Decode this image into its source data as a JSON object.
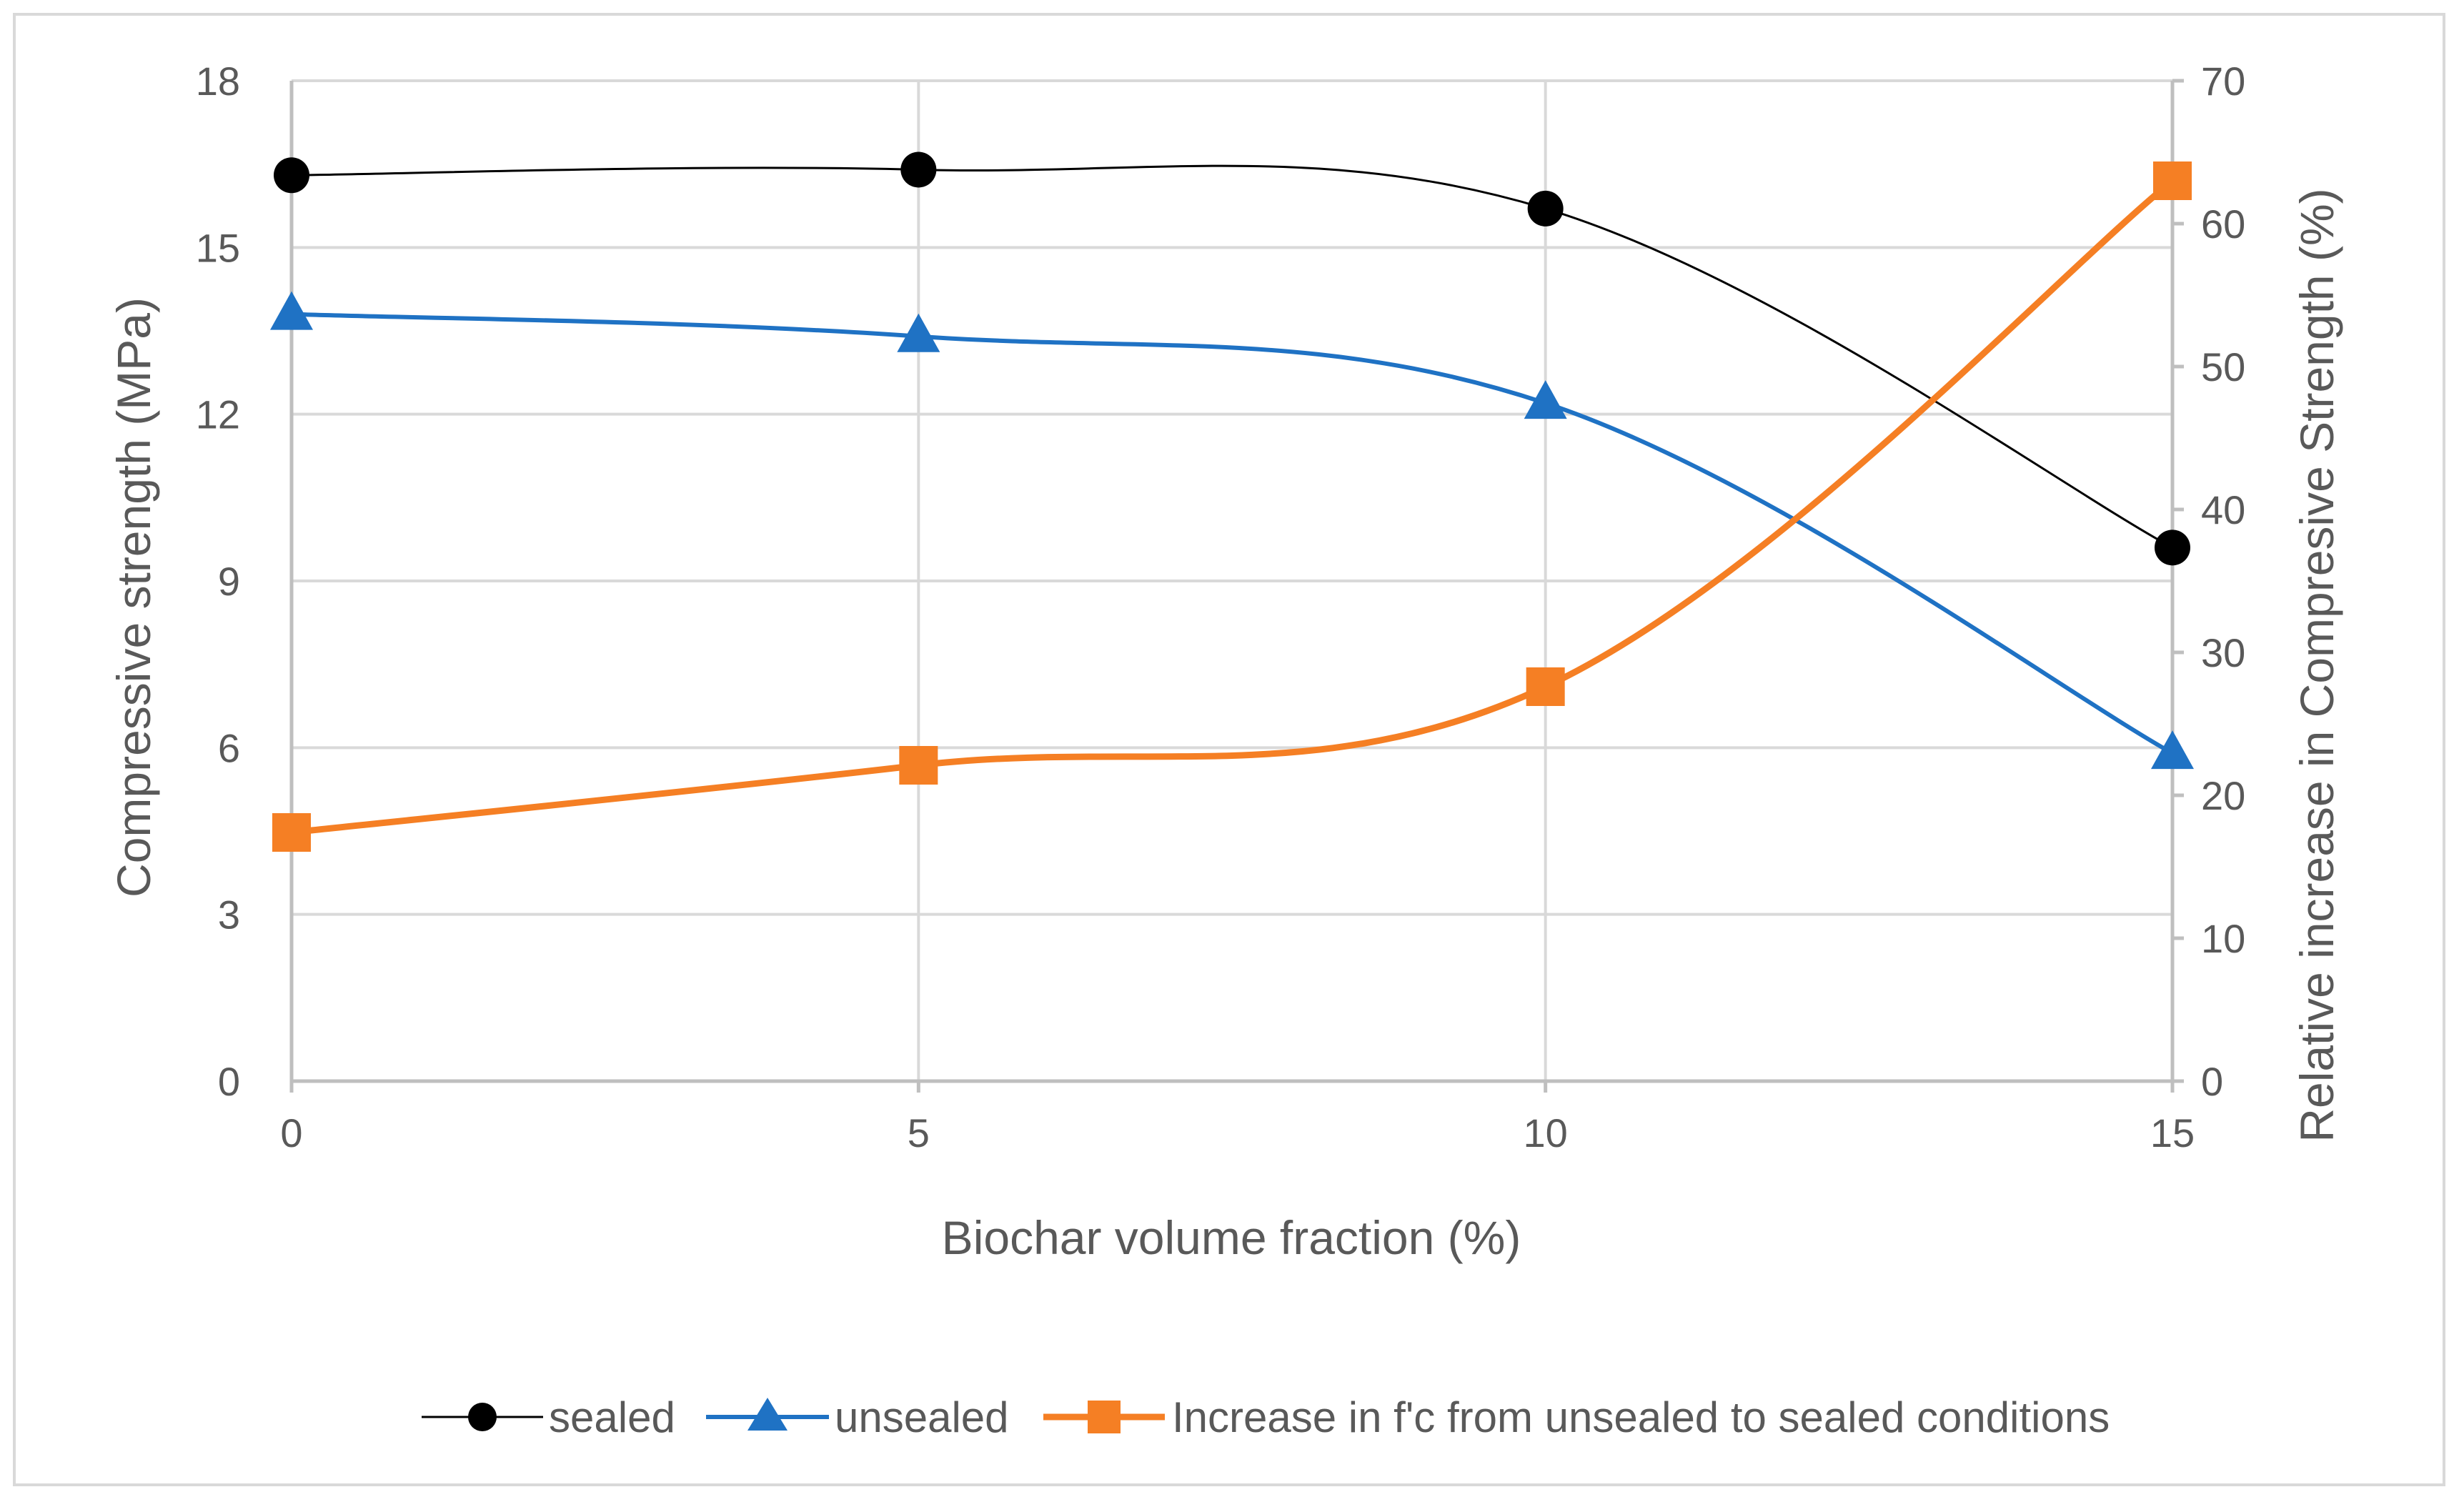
{
  "chart_data": {
    "type": "line",
    "title": "",
    "xlabel": "Biochar volume fraction (%)",
    "ylabel": "Compressive strength (MPa)",
    "y2label": "Relative increase in Compresive Strength (%)",
    "x": [
      0,
      5,
      10,
      15
    ],
    "x_tick_labels": [
      "0",
      "5",
      "10",
      "15"
    ],
    "xlim": [
      0,
      15
    ],
    "ylim": [
      0,
      18
    ],
    "y_ticks": [
      0,
      3,
      6,
      9,
      12,
      15,
      18
    ],
    "y_tick_labels": [
      "0",
      "3",
      "6",
      "9",
      "12",
      "15",
      "18"
    ],
    "y2lim": [
      0,
      70
    ],
    "y2_ticks": [
      0,
      10,
      20,
      30,
      40,
      50,
      60,
      70
    ],
    "y2_tick_labels": [
      "0",
      "10",
      "20",
      "30",
      "40",
      "50",
      "60",
      "70"
    ],
    "grid": true,
    "legend_position": "bottom",
    "series": [
      {
        "name": "sealed",
        "axis": "left",
        "marker": "circle",
        "color": "#000000",
        "values": [
          16.3,
          16.4,
          15.7,
          9.6
        ]
      },
      {
        "name": "unsealed",
        "axis": "left",
        "marker": "triangle",
        "color": "#1f72c4",
        "values": [
          13.8,
          13.4,
          12.2,
          5.9
        ]
      },
      {
        "name": "Increase in f'c from unsealed to sealed conditions",
        "axis": "right",
        "marker": "square",
        "color": "#f57f24",
        "values": [
          17.4,
          22.1,
          27.6,
          63.0
        ]
      }
    ]
  },
  "colors": {
    "grid": "#d9d9d9",
    "text": "#595959",
    "axis": "#bfbfbf"
  }
}
